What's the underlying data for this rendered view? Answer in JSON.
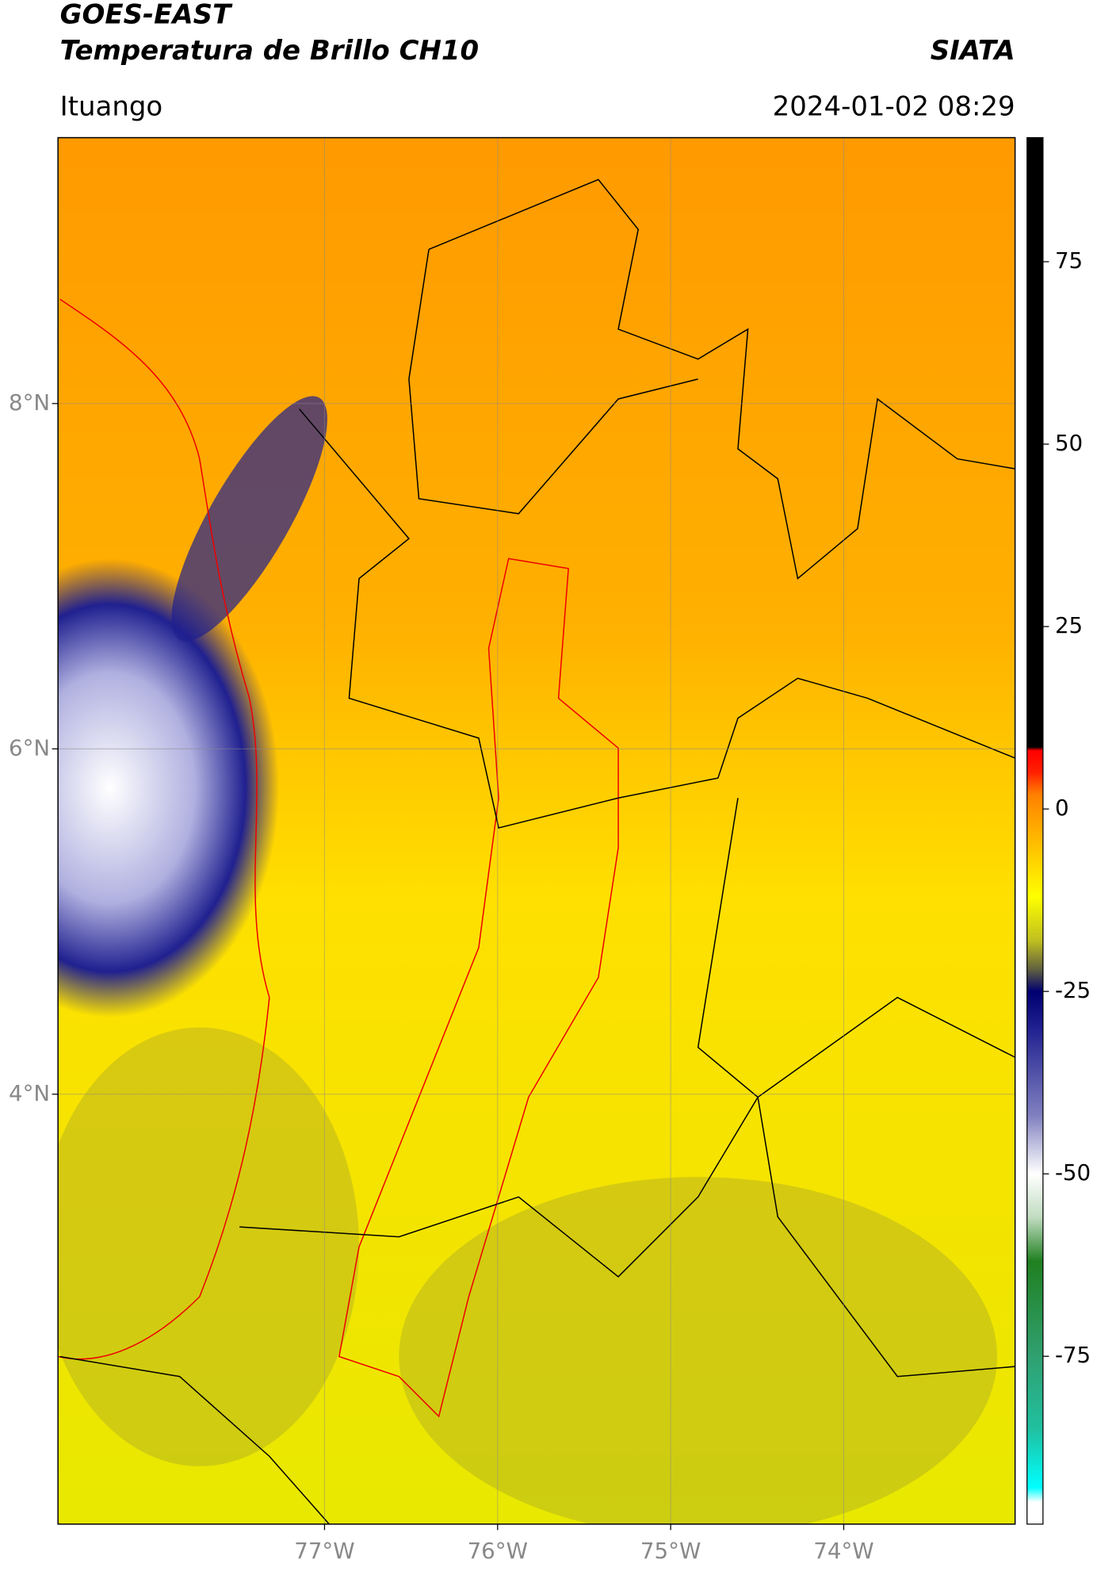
{
  "header": {
    "title": "GOES-EAST",
    "subtitle": "Temperatura de Brillo CH10",
    "source": "SIATA",
    "location": "Ituango",
    "datetime": "2024-01-02 08:29"
  },
  "map": {
    "xlim": [
      -78.54,
      -73.01
    ],
    "ylim": [
      1.51,
      9.54
    ],
    "xticks": [
      {
        "value": -77,
        "label": "77°W"
      },
      {
        "value": -76,
        "label": "76°W"
      },
      {
        "value": -75,
        "label": "75°W"
      },
      {
        "value": -74,
        "label": "74°W"
      }
    ],
    "yticks": [
      {
        "value": 8,
        "label": "8°N"
      },
      {
        "value": 6,
        "label": "6°N"
      },
      {
        "value": 4,
        "label": "4°N"
      }
    ],
    "grid": true
  },
  "colorbar": {
    "clim": [
      -98,
      92
    ],
    "ticks": [
      75,
      50,
      25,
      0,
      -25,
      -50,
      -75
    ],
    "colormap": [
      [
        -98,
        "#ffffff"
      ],
      [
        -95,
        "#ffffff"
      ],
      [
        -93,
        "#00ffff"
      ],
      [
        -85,
        "#20c0a0"
      ],
      [
        -75,
        "#30a070"
      ],
      [
        -62,
        "#208020"
      ],
      [
        -56,
        "#c0dcc0"
      ],
      [
        -50,
        "#ffffff"
      ],
      [
        -42,
        "#8080c0"
      ],
      [
        -30,
        "#202090"
      ],
      [
        -25,
        "#000070"
      ],
      [
        -22,
        "#606040"
      ],
      [
        -18,
        "#c0c020"
      ],
      [
        -12,
        "#ffff00"
      ],
      [
        -5,
        "#ffc000"
      ],
      [
        2,
        "#ff8000"
      ],
      [
        5,
        "#ff2000"
      ],
      [
        8,
        "#ff0000"
      ],
      [
        8.5,
        "#000000"
      ],
      [
        92,
        "#000000"
      ]
    ]
  }
}
